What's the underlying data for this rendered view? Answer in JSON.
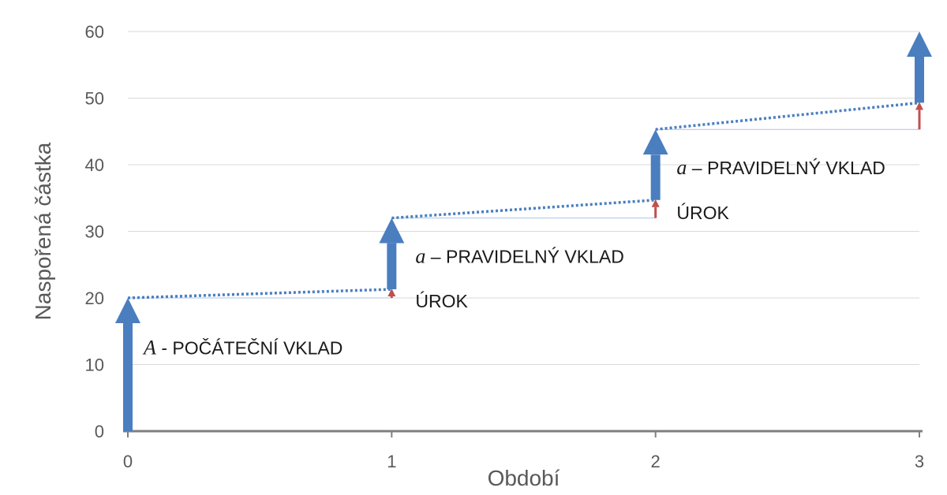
{
  "chart_data": {
    "type": "line",
    "xlabel": "Období",
    "ylabel": "Naspořená částka",
    "x_ticks": [
      "0",
      "1",
      "2",
      "3"
    ],
    "y_ticks": [
      "0",
      "10",
      "20",
      "30",
      "40",
      "50",
      "60"
    ],
    "xlim": [
      0,
      3
    ],
    "ylim": [
      0,
      60
    ],
    "grid": true,
    "colors": {
      "deposit": "#4a7ebf",
      "interest": "#c0504d",
      "growth": "#4a7ebf",
      "grid": "#d9d9d9",
      "axis": "#808080"
    },
    "deposits": [
      {
        "x": 0,
        "from": 0,
        "to": 20
      },
      {
        "x": 1,
        "from": 21.3,
        "to": 32
      },
      {
        "x": 2,
        "from": 34.7,
        "to": 45.3
      },
      {
        "x": 3,
        "from": 49.3,
        "to": 60
      }
    ],
    "interest": [
      {
        "x": 1,
        "from": 20,
        "to": 21.3
      },
      {
        "x": 2,
        "from": 32,
        "to": 34.7
      },
      {
        "x": 3,
        "from": 45.3,
        "to": 49.3
      }
    ],
    "growth_segments": [
      {
        "x0": 0,
        "y0": 20,
        "x1": 1,
        "y1": 21.3
      },
      {
        "x0": 1,
        "y0": 32,
        "x1": 2,
        "y1": 34.7
      },
      {
        "x0": 2,
        "y0": 45.3,
        "x1": 3,
        "y1": 49.3
      }
    ],
    "baseline_segments": [
      {
        "x0": 0,
        "x1": 1,
        "y": 20
      },
      {
        "x0": 1,
        "x1": 2,
        "y": 32
      },
      {
        "x0": 2,
        "x1": 3,
        "y": 45.3
      }
    ],
    "annotations": [
      {
        "var": "A",
        "text": " - POČÁTEČNÍ VKLAD",
        "x": 0.06,
        "y": 12.5
      },
      {
        "var": "a",
        "text": " – PRAVIDELNÝ VKLAD",
        "x": 1.09,
        "y": 26.2
      },
      {
        "var": "",
        "text": "ÚROK",
        "x": 1.09,
        "y": 19.5
      },
      {
        "var": "a",
        "text": " – PRAVIDELNÝ VKLAD",
        "x": 2.08,
        "y": 39.5
      },
      {
        "var": "",
        "text": "ÚROK",
        "x": 2.08,
        "y": 32.8
      }
    ]
  }
}
